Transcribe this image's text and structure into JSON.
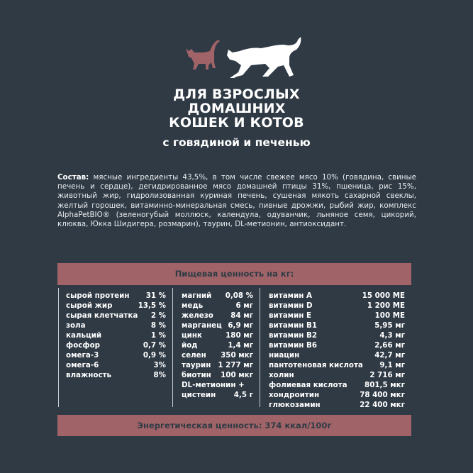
{
  "title_lines": [
    "ДЛЯ ВЗРОСЛЫХ",
    "ДОМАШНИХ",
    "КОШЕК И КОТОВ"
  ],
  "subtitle": "с говядиной и печенью",
  "composition": {
    "label": "Состав:",
    "text": " мясные ингредиенты 43,5%, в том числе свежее мясо 10% (говядина, свиные печень и сердце), дегидрированное мясо домашней птицы 31%, пшеница, рис 15%, животный жир, гидролизованная куриная печень, сушеная мякоть сахарной свеклы, желтый горошек, витаминно-минеральная смесь, пивные дрожжи, рыбий жир, комплекс AlphaPetBIO® (зеленогубый моллюск, календула, одуванчик, льняное семя, цикорий, клюква, Юкка Шидигера, розмарин), таурин, DL-метионин, антиоксидант."
  },
  "nutrition_header": "Пищевая ценность на кг:",
  "col1": [
    {
      "n": "сырой протеин",
      "v": "31 %"
    },
    {
      "n": "сырой жир",
      "v": "13,5 %"
    },
    {
      "n": "сырая клетчатка",
      "v": "2 %"
    },
    {
      "n": "зола",
      "v": "8 %"
    },
    {
      "n": "кальций",
      "v": "1 %"
    },
    {
      "n": "фосфор",
      "v": "0,7 %"
    },
    {
      "n": "омега-3",
      "v": "0,9 %"
    },
    {
      "n": "омега-6",
      "v": "3%"
    },
    {
      "n": "влажность",
      "v": "8%"
    }
  ],
  "col2": [
    {
      "n": "магний",
      "v": "0,08 %"
    },
    {
      "n": "медь",
      "v": "6 мг"
    },
    {
      "n": "железо",
      "v": "84 мг"
    },
    {
      "n": "марганец",
      "v": "6,9 мг"
    },
    {
      "n": "цинк",
      "v": "180 мг"
    },
    {
      "n": "йод",
      "v": "1,4 мг"
    },
    {
      "n": "селен",
      "v": "350 мкг"
    },
    {
      "n": "таурин",
      "v": "1 277 мг"
    },
    {
      "n": "биотин",
      "v": "100 мкг"
    },
    {
      "n": "DL-метионин +",
      "v": ""
    },
    {
      "n": "цистеин",
      "v": "4,5 г"
    }
  ],
  "col3": [
    {
      "n": "витамин A",
      "v": "15 000 МЕ"
    },
    {
      "n": "витамин D",
      "v": "1 200 МЕ"
    },
    {
      "n": "витамин E",
      "v": "100 МЕ"
    },
    {
      "n": "витамин B1",
      "v": "5,95 мг"
    },
    {
      "n": "витамин B2",
      "v": "4,3 мг"
    },
    {
      "n": "витамин B6",
      "v": "2,66 мг"
    },
    {
      "n": "ниацин",
      "v": "42,7 мг"
    },
    {
      "n": "пантотеновая кислота",
      "v": "9,1 мг"
    },
    {
      "n": "холин",
      "v": "2 716 мг"
    },
    {
      "n": "фолиевая кислота",
      "v": "801,5 мкг"
    },
    {
      "n": "хондроитин",
      "v": "78 400 мкг"
    },
    {
      "n": "глюкозамин",
      "v": "22 400 мкг"
    }
  ],
  "energy": "Энергетическая ценность: 374 ккал/100г",
  "colors": {
    "background": "#2f3a45",
    "accent": "#a06468"
  }
}
